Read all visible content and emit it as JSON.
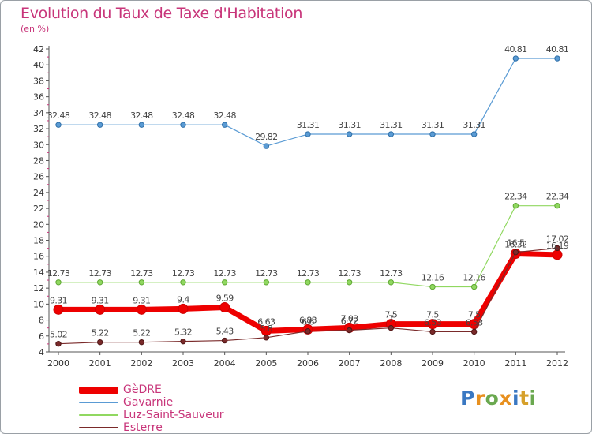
{
  "title": "Evolution du Taux de Taxe d'Habitation",
  "subtitle": "(en %)",
  "logo": {
    "text": "Proxiti",
    "colors": [
      "#3a78c2",
      "#e8901f",
      "#6aa84f",
      "#e8901f",
      "#3a78c2",
      "#d6a02b",
      "#6aa84f"
    ]
  },
  "chart_data": {
    "type": "line",
    "x": [
      "2000",
      "2001",
      "2002",
      "2003",
      "2004",
      "2005",
      "2006",
      "2007",
      "2008",
      "2009",
      "2010",
      "2011",
      "2012"
    ],
    "ylim": [
      4,
      42
    ],
    "yticks": [
      4,
      6,
      8,
      10,
      12,
      14,
      16,
      18,
      20,
      22,
      24,
      26,
      28,
      30,
      32,
      34,
      36,
      38,
      40,
      42
    ],
    "grid": false,
    "legend_position": "bottom-left",
    "series": [
      {
        "name": "GèDRE",
        "color": "#ee0000",
        "values": [
          9.31,
          9.31,
          9.31,
          9.4,
          9.59,
          6.63,
          6.83,
          7.03,
          7.5,
          7.5,
          7.5,
          16.32,
          16.19
        ],
        "labels": [
          "9.31",
          "9.31",
          "9.31",
          "9.4",
          "9.59",
          "6.63",
          "6.83",
          "7.03",
          "7.5",
          "7.5",
          "7.5",
          "16.32",
          "16.19"
        ]
      },
      {
        "name": "Gavarnie",
        "color": "#5a9bd4",
        "values": [
          32.48,
          32.48,
          32.48,
          32.48,
          32.48,
          29.82,
          31.31,
          31.31,
          31.31,
          31.31,
          31.31,
          40.81,
          40.81
        ],
        "labels": [
          "32.48",
          "32.48",
          "32.48",
          "32.48",
          "32.48",
          "29.82",
          "31.31",
          "31.31",
          "31.31",
          "31.31",
          "31.31",
          "40.81",
          "40.81"
        ]
      },
      {
        "name": "Luz-Saint-Sauveur",
        "color": "#90d860",
        "values": [
          12.73,
          12.73,
          12.73,
          12.73,
          12.73,
          12.73,
          12.73,
          12.73,
          12.73,
          12.16,
          12.16,
          22.34,
          22.34
        ],
        "labels": [
          "12.73",
          "12.73",
          "12.73",
          "12.73",
          "12.73",
          "12.73",
          "12.73",
          "12.73",
          "12.73",
          "12.16",
          "12.16",
          "22.34",
          "22.34"
        ]
      },
      {
        "name": "Esterre",
        "color": "#7a2a2a",
        "values": [
          5.02,
          5.22,
          5.22,
          5.32,
          5.43,
          5.8,
          6.6,
          6.72,
          7.0,
          6.53,
          6.53,
          16.5,
          17.02
        ],
        "labels": [
          "5.02",
          "5.22",
          "5.22",
          "5.32",
          "5.43",
          "5.8",
          "6.6",
          "6.72",
          "7",
          "6.53",
          "6.53",
          "16.5",
          "17.02"
        ]
      }
    ]
  }
}
